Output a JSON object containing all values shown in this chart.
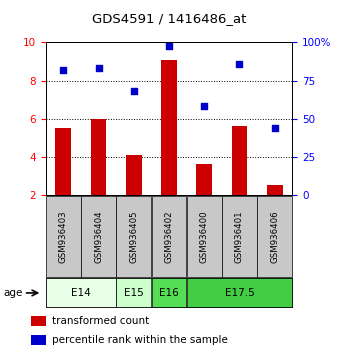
{
  "title": "GDS4591 / 1416486_at",
  "samples": [
    "GSM936403",
    "GSM936404",
    "GSM936405",
    "GSM936402",
    "GSM936400",
    "GSM936401",
    "GSM936406"
  ],
  "transformed_count": [
    5.5,
    6.0,
    4.1,
    9.1,
    3.6,
    5.6,
    2.5
  ],
  "percentile_rank": [
    82,
    83,
    68,
    98,
    58,
    86,
    44
  ],
  "bar_color": "#cc0000",
  "dot_color": "#0000cc",
  "left_ylim": [
    2,
    10
  ],
  "right_ylim": [
    0,
    100
  ],
  "left_yticks": [
    2,
    4,
    6,
    8,
    10
  ],
  "right_yticks": [
    0,
    25,
    50,
    75,
    100
  ],
  "right_yticklabels": [
    "0",
    "25",
    "50",
    "75",
    "100%"
  ],
  "age_groups": [
    {
      "label": "E14",
      "indices": [
        0,
        1
      ],
      "color": "#e8ffe8"
    },
    {
      "label": "E15",
      "indices": [
        2
      ],
      "color": "#ccffcc"
    },
    {
      "label": "E16",
      "indices": [
        3
      ],
      "color": "#55dd55"
    },
    {
      "label": "E17.5",
      "indices": [
        4,
        5,
        6
      ],
      "color": "#44cc44"
    }
  ],
  "sample_box_color": "#c8c8c8",
  "legend_red_label": "transformed count",
  "legend_blue_label": "percentile rank within the sample",
  "age_label": "age",
  "bar_bottom": 2.0,
  "grid_yticks": [
    4,
    6,
    8
  ]
}
